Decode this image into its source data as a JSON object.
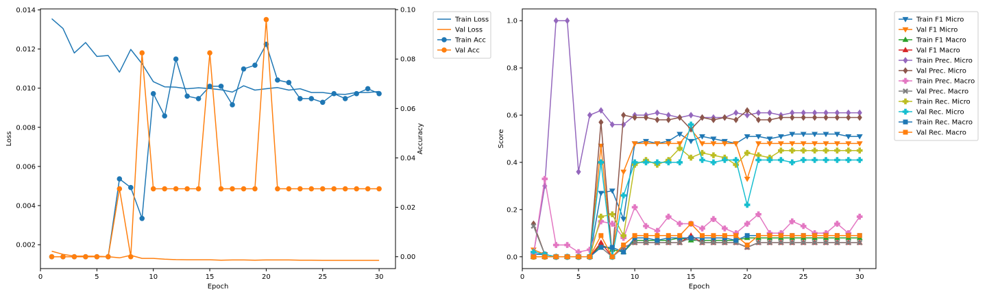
{
  "charts": [
    {
      "type": "line",
      "xlabel": "Epoch",
      "ylabel": "Loss",
      "y2label": "Accuracy",
      "xlim": [
        0,
        31.45
      ],
      "ylim": [
        0.00078,
        0.01405
      ],
      "y2lim": [
        -0.0048,
        0.1003
      ],
      "xticks": [
        0,
        5,
        10,
        15,
        20,
        25,
        30
      ],
      "yticks": [
        0.002,
        0.004,
        0.006,
        0.008,
        0.01,
        0.012,
        0.014
      ],
      "ytick_labels": [
        "0.002",
        "0.004",
        "0.006",
        "0.008",
        "0.010",
        "0.012",
        "0.014"
      ],
      "y2ticks": [
        0.0,
        0.02,
        0.04,
        0.06,
        0.08,
        0.1
      ],
      "y2tick_labels": [
        "0.00",
        "0.02",
        "0.04",
        "0.06",
        "0.08",
        "0.10"
      ],
      "legend_position": "outside-right-top",
      "x": [
        1,
        2,
        3,
        4,
        5,
        6,
        7,
        8,
        9,
        10,
        11,
        12,
        13,
        14,
        15,
        16,
        17,
        18,
        19,
        20,
        21,
        22,
        23,
        24,
        25,
        26,
        27,
        28,
        29,
        30
      ],
      "series": [
        {
          "name": "Train Loss",
          "axis": "left",
          "color": "#1f77b4",
          "marker": "none",
          "values": [
            0.01355,
            0.01305,
            0.0118,
            0.01233,
            0.01162,
            0.01167,
            0.01082,
            0.01198,
            0.01125,
            0.01033,
            0.01007,
            0.01005,
            0.00997,
            0.01002,
            0.00998,
            0.00992,
            0.0098,
            0.01012,
            0.0099,
            0.00997,
            0.01003,
            0.0099,
            0.00997,
            0.00978,
            0.00978,
            0.0097,
            0.00968,
            0.00978,
            0.00978,
            0.00983
          ]
        },
        {
          "name": "Val Loss",
          "axis": "left",
          "color": "#ff7f0e",
          "marker": "none",
          "values": [
            0.00167,
            0.00151,
            0.00142,
            0.00142,
            0.00141,
            0.00139,
            0.00133,
            0.00146,
            0.0013,
            0.0013,
            0.00126,
            0.00124,
            0.00123,
            0.00123,
            0.00123,
            0.00121,
            0.00122,
            0.00122,
            0.00121,
            0.00122,
            0.00122,
            0.00122,
            0.00121,
            0.00121,
            0.0012,
            0.0012,
            0.0012,
            0.0012,
            0.0012,
            0.0012
          ]
        },
        {
          "name": "Train Acc",
          "axis": "right",
          "color": "#1f77b4",
          "marker": "circle",
          "values": [
            0.0,
            0.0,
            0.0,
            0.0,
            0.0,
            0.0,
            0.0315,
            0.028,
            0.0155,
            0.066,
            0.057,
            0.08,
            0.065,
            0.064,
            0.069,
            0.069,
            0.0615,
            0.076,
            0.0775,
            0.086,
            0.0715,
            0.0705,
            0.064,
            0.064,
            0.0625,
            0.066,
            0.064,
            0.066,
            0.068,
            0.066
          ]
        },
        {
          "name": "Val Acc",
          "axis": "right",
          "color": "#ff7f0e",
          "marker": "circle",
          "values": [
            0.0,
            0.0,
            0.0,
            0.0,
            0.0,
            0.0,
            0.0275,
            0.0,
            0.0825,
            0.0275,
            0.0275,
            0.0275,
            0.0275,
            0.0275,
            0.0825,
            0.0275,
            0.0275,
            0.0275,
            0.0275,
            0.096,
            0.0275,
            0.0275,
            0.0275,
            0.0275,
            0.0275,
            0.0275,
            0.0275,
            0.0275,
            0.0275,
            0.0275
          ]
        }
      ]
    },
    {
      "type": "line",
      "xlabel": "Epoch",
      "ylabel": "Score",
      "xlim": [
        0,
        31.45
      ],
      "ylim": [
        -0.05,
        1.05
      ],
      "xticks": [
        0,
        5,
        10,
        15,
        20,
        25,
        30
      ],
      "yticks": [
        0.0,
        0.2,
        0.4,
        0.6,
        0.8,
        1.0
      ],
      "ytick_labels": [
        "0.0",
        "0.2",
        "0.4",
        "0.6",
        "0.8",
        "1.0"
      ],
      "legend_position": "outside-right-top",
      "x": [
        1,
        2,
        3,
        4,
        5,
        6,
        7,
        8,
        9,
        10,
        11,
        12,
        13,
        14,
        15,
        16,
        17,
        18,
        19,
        20,
        21,
        22,
        23,
        24,
        25,
        26,
        27,
        28,
        29,
        30
      ],
      "series": [
        {
          "name": "Train F1 Micro",
          "color": "#1f77b4",
          "marker": "tri_down",
          "values": [
            0.01,
            0.01,
            0.0,
            0.0,
            0.0,
            0.0,
            0.27,
            0.28,
            0.16,
            0.48,
            0.49,
            0.48,
            0.49,
            0.52,
            0.49,
            0.51,
            0.5,
            0.49,
            0.48,
            0.51,
            0.51,
            0.5,
            0.51,
            0.52,
            0.52,
            0.52,
            0.52,
            0.52,
            0.51,
            0.51
          ]
        },
        {
          "name": "Val F1 Micro",
          "color": "#ff7f0e",
          "marker": "tri_down",
          "values": [
            0.03,
            0.01,
            0.0,
            0.0,
            0.0,
            0.0,
            0.47,
            0.0,
            0.36,
            0.48,
            0.48,
            0.48,
            0.48,
            0.48,
            0.54,
            0.48,
            0.48,
            0.48,
            0.48,
            0.33,
            0.48,
            0.48,
            0.48,
            0.48,
            0.48,
            0.48,
            0.48,
            0.48,
            0.48,
            0.48
          ]
        },
        {
          "name": "Train F1 Macro",
          "color": "#2ca02c",
          "marker": "tri_up",
          "values": [
            0.0,
            0.0,
            0.0,
            0.0,
            0.0,
            0.0,
            0.05,
            0.03,
            0.02,
            0.07,
            0.07,
            0.07,
            0.07,
            0.08,
            0.07,
            0.07,
            0.07,
            0.07,
            0.07,
            0.08,
            0.08,
            0.08,
            0.08,
            0.08,
            0.08,
            0.08,
            0.08,
            0.08,
            0.08,
            0.08
          ]
        },
        {
          "name": "Val F1 Macro",
          "color": "#d62728",
          "marker": "tri_up",
          "values": [
            0.0,
            0.0,
            0.0,
            0.0,
            0.0,
            0.0,
            0.06,
            0.0,
            0.04,
            0.06,
            0.06,
            0.06,
            0.06,
            0.06,
            0.09,
            0.06,
            0.06,
            0.06,
            0.06,
            0.04,
            0.06,
            0.06,
            0.06,
            0.06,
            0.06,
            0.06,
            0.06,
            0.06,
            0.06,
            0.06
          ]
        },
        {
          "name": "Train Prec. Micro",
          "color": "#9467bd",
          "marker": "diamond",
          "values": [
            0.01,
            0.3,
            1.0,
            1.0,
            0.36,
            0.6,
            0.62,
            0.56,
            0.56,
            0.6,
            0.6,
            0.61,
            0.6,
            0.59,
            0.6,
            0.59,
            0.59,
            0.59,
            0.61,
            0.6,
            0.61,
            0.61,
            0.6,
            0.61,
            0.61,
            0.61,
            0.61,
            0.61,
            0.61,
            0.61
          ]
        },
        {
          "name": "Val Prec. Micro",
          "color": "#8c564b",
          "marker": "diamond",
          "values": [
            0.14,
            0.01,
            0.0,
            0.0,
            0.0,
            0.0,
            0.57,
            0.0,
            0.6,
            0.59,
            0.59,
            0.58,
            0.58,
            0.59,
            0.54,
            0.59,
            0.58,
            0.59,
            0.58,
            0.62,
            0.58,
            0.58,
            0.59,
            0.59,
            0.59,
            0.59,
            0.59,
            0.59,
            0.59,
            0.59
          ]
        },
        {
          "name": "Train Prec. Macro",
          "color": "#e377c2",
          "marker": "plus_filled",
          "values": [
            0.01,
            0.33,
            0.05,
            0.05,
            0.02,
            0.03,
            0.15,
            0.14,
            0.08,
            0.21,
            0.13,
            0.11,
            0.17,
            0.14,
            0.14,
            0.12,
            0.16,
            0.12,
            0.1,
            0.14,
            0.18,
            0.1,
            0.1,
            0.15,
            0.13,
            0.1,
            0.1,
            0.14,
            0.1,
            0.17
          ]
        },
        {
          "name": "Val Prec. Macro",
          "color": "#7f7f7f",
          "marker": "x_filled",
          "values": [
            0.13,
            0.01,
            0.0,
            0.0,
            0.0,
            0.0,
            0.04,
            0.0,
            0.04,
            0.06,
            0.06,
            0.06,
            0.06,
            0.06,
            0.08,
            0.06,
            0.06,
            0.06,
            0.06,
            0.04,
            0.06,
            0.06,
            0.06,
            0.06,
            0.06,
            0.06,
            0.06,
            0.06,
            0.06,
            0.06
          ]
        },
        {
          "name": "Train Rec. Micro",
          "color": "#bcbd22",
          "marker": "plus_filled",
          "values": [
            0.0,
            0.0,
            0.0,
            0.0,
            0.0,
            0.0,
            0.17,
            0.18,
            0.09,
            0.39,
            0.41,
            0.39,
            0.41,
            0.46,
            0.42,
            0.44,
            0.43,
            0.42,
            0.39,
            0.44,
            0.43,
            0.42,
            0.45,
            0.45,
            0.45,
            0.45,
            0.45,
            0.45,
            0.45,
            0.45
          ]
        },
        {
          "name": "Val Rec. Micro",
          "color": "#17becf",
          "marker": "plus_filled",
          "values": [
            0.02,
            0.01,
            0.0,
            0.0,
            0.0,
            0.0,
            0.4,
            0.0,
            0.26,
            0.4,
            0.4,
            0.4,
            0.4,
            0.4,
            0.56,
            0.41,
            0.4,
            0.41,
            0.41,
            0.22,
            0.41,
            0.41,
            0.41,
            0.4,
            0.41,
            0.41,
            0.41,
            0.41,
            0.41,
            0.41
          ]
        },
        {
          "name": "Train Rec. Macro",
          "color": "#1f77b4",
          "marker": "square",
          "values": [
            0.0,
            0.0,
            0.0,
            0.0,
            0.0,
            0.0,
            0.04,
            0.04,
            0.02,
            0.08,
            0.08,
            0.07,
            0.08,
            0.08,
            0.08,
            0.08,
            0.08,
            0.08,
            0.07,
            0.09,
            0.09,
            0.09,
            0.09,
            0.09,
            0.09,
            0.09,
            0.09,
            0.09,
            0.09,
            0.09
          ]
        },
        {
          "name": "Val Rec. Macro",
          "color": "#ff7f0e",
          "marker": "square",
          "values": [
            0.0,
            0.0,
            0.0,
            0.0,
            0.0,
            0.0,
            0.09,
            0.0,
            0.05,
            0.09,
            0.09,
            0.09,
            0.09,
            0.09,
            0.14,
            0.09,
            0.09,
            0.09,
            0.09,
            0.05,
            0.09,
            0.09,
            0.09,
            0.09,
            0.09,
            0.09,
            0.09,
            0.09,
            0.09,
            0.09
          ]
        }
      ]
    }
  ]
}
